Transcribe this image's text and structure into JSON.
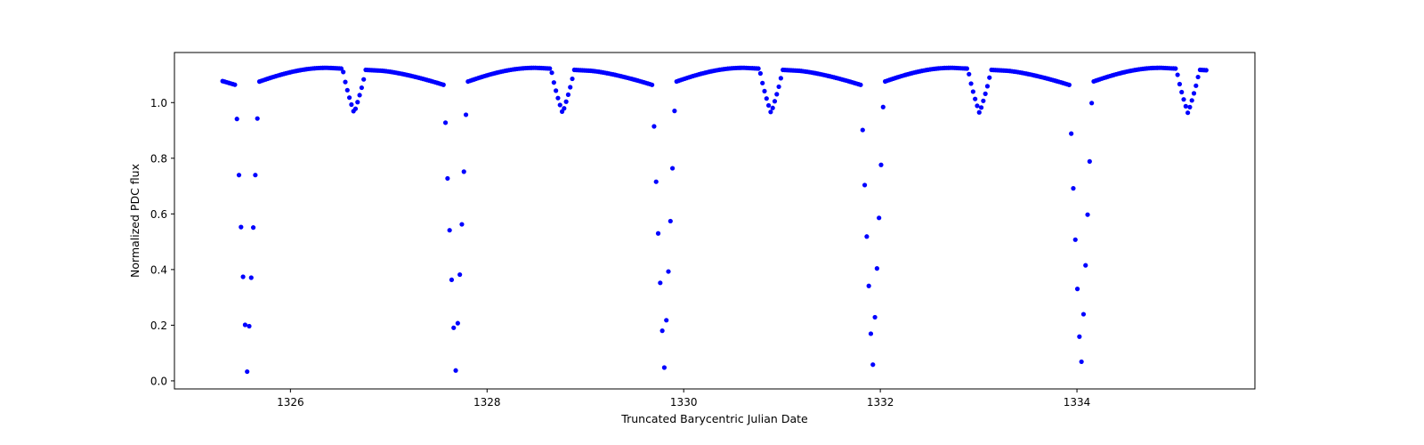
{
  "chart_data": {
    "type": "scatter",
    "title": "",
    "xlabel": "Truncated Barycentric Julian Date",
    "ylabel": "Normalized PDC flux",
    "xlim": [
      1324.82,
      1335.81
    ],
    "ylim": [
      -0.029,
      1.18
    ],
    "grid": false,
    "legend": null,
    "marker_color": "#0000ff",
    "marker": "circle",
    "x_ticks": [
      1326,
      1328,
      1330,
      1332,
      1334
    ],
    "x_tick_labels": [
      "1326",
      "1328",
      "1330",
      "1332",
      "1334"
    ],
    "y_ticks": [
      0.0,
      0.2,
      0.4,
      0.6,
      0.8,
      1.0
    ],
    "y_tick_labels": [
      "0.0",
      "0.2",
      "0.4",
      "0.6",
      "0.8",
      "1.0"
    ],
    "model": {
      "description": "Eclipsing binary light curve",
      "period_days": 2.1203,
      "primary_epoch": 1325.56,
      "secondary_phase": 0.513,
      "time_start": 1325.31,
      "time_end": 1335.33,
      "cadence_days": 0.0208,
      "max_flux": 1.125,
      "post_primary_flux": 1.06,
      "primary_min_flux": 0.03,
      "secondary_min_flux": 0.962,
      "primary_half_width_days": 0.115,
      "secondary_half_width_days": 0.115
    },
    "primary_eclipse_minima": [
      {
        "x": 1325.56,
        "y": 0.03
      },
      {
        "x": 1327.68,
        "y": 0.03
      },
      {
        "x": 1329.8,
        "y": 0.03
      },
      {
        "x": 1331.92,
        "y": 0.03
      },
      {
        "x": 1334.04,
        "y": 0.03
      }
    ],
    "secondary_eclipse_minima": [
      {
        "x": 1326.65,
        "y": 0.962
      },
      {
        "x": 1328.77,
        "y": 0.962
      },
      {
        "x": 1330.88,
        "y": 0.962
      },
      {
        "x": 1333.0,
        "y": 0.962
      },
      {
        "x": 1335.12,
        "y": 0.962
      }
    ],
    "sample_points": [
      {
        "x": 1325.31,
        "y": 1.07
      },
      {
        "x": 1325.42,
        "y": 1.055
      },
      {
        "x": 1325.45,
        "y": 1.0
      },
      {
        "x": 1325.47,
        "y": 0.89
      },
      {
        "x": 1325.49,
        "y": 0.74
      },
      {
        "x": 1325.5,
        "y": 0.565
      },
      {
        "x": 1325.52,
        "y": 0.378
      },
      {
        "x": 1325.53,
        "y": 0.193
      },
      {
        "x": 1325.55,
        "y": 0.062
      },
      {
        "x": 1325.56,
        "y": 0.03
      },
      {
        "x": 1325.57,
        "y": 0.078
      },
      {
        "x": 1325.58,
        "y": 0.218
      },
      {
        "x": 1325.6,
        "y": 0.402
      },
      {
        "x": 1325.62,
        "y": 0.59
      },
      {
        "x": 1325.63,
        "y": 0.765
      },
      {
        "x": 1325.65,
        "y": 0.905
      },
      {
        "x": 1325.67,
        "y": 1.012
      },
      {
        "x": 1325.69,
        "y": 1.06
      },
      {
        "x": 1326.2,
        "y": 1.125
      },
      {
        "x": 1326.65,
        "y": 0.962
      },
      {
        "x": 1327.1,
        "y": 1.12
      },
      {
        "x": 1327.55,
        "y": 1.055
      }
    ]
  }
}
